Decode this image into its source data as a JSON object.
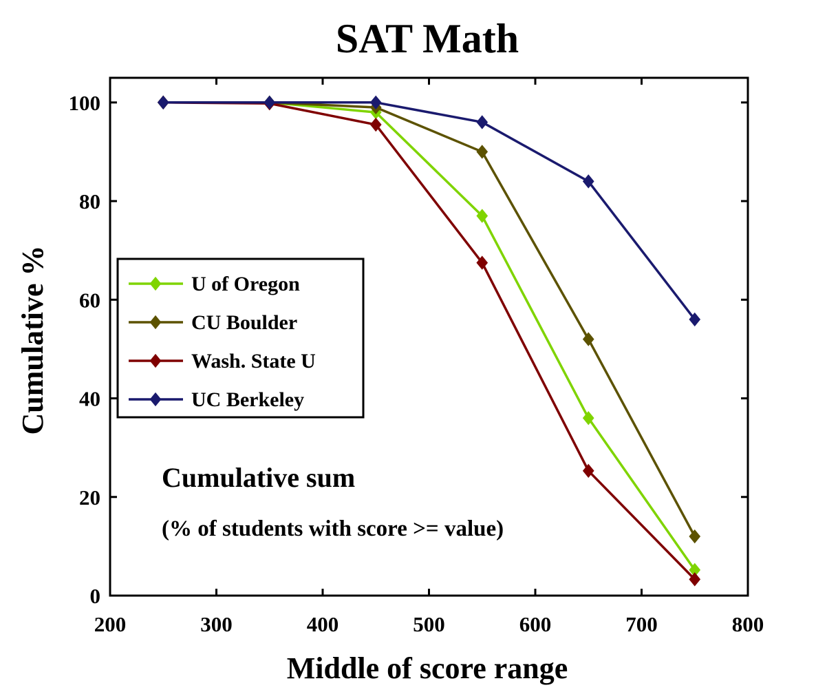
{
  "chart_data": {
    "type": "line",
    "title": "SAT Math",
    "xlabel": "Middle of score range",
    "ylabel": "Cumulative %",
    "xlim": [
      200,
      800
    ],
    "ylim": [
      0,
      105
    ],
    "xticks": [
      200,
      300,
      400,
      500,
      600,
      700,
      800
    ],
    "yticks": [
      0,
      20,
      40,
      60,
      80,
      100
    ],
    "xtick_labels": [
      "200",
      "300",
      "400",
      "500",
      "600",
      "700",
      "800"
    ],
    "ytick_labels": [
      "0",
      "20",
      "40",
      "60",
      "80",
      "100"
    ],
    "grid": false,
    "legend_position": "center-left",
    "marker": "diamond",
    "x": [
      250,
      350,
      450,
      550,
      650,
      750
    ],
    "series": [
      {
        "name": "U of Oregon",
        "color": "#7fd400",
        "values": [
          100,
          100,
          98,
          77,
          36,
          5.2
        ]
      },
      {
        "name": "CU Boulder",
        "color": "#5c5200",
        "values": [
          100,
          100,
          99,
          90,
          52,
          12
        ]
      },
      {
        "name": "Wash. State U",
        "color": "#7f0000",
        "values": [
          100,
          99.8,
          95.5,
          67.5,
          25.3,
          3.3
        ]
      },
      {
        "name": "UC Berkeley",
        "color": "#1a1a6e",
        "values": [
          100,
          100,
          100,
          96,
          84,
          56
        ]
      }
    ],
    "annotations": [
      {
        "text": "Cumulative sum"
      },
      {
        "text": "(% of students with score >= value)"
      }
    ]
  }
}
